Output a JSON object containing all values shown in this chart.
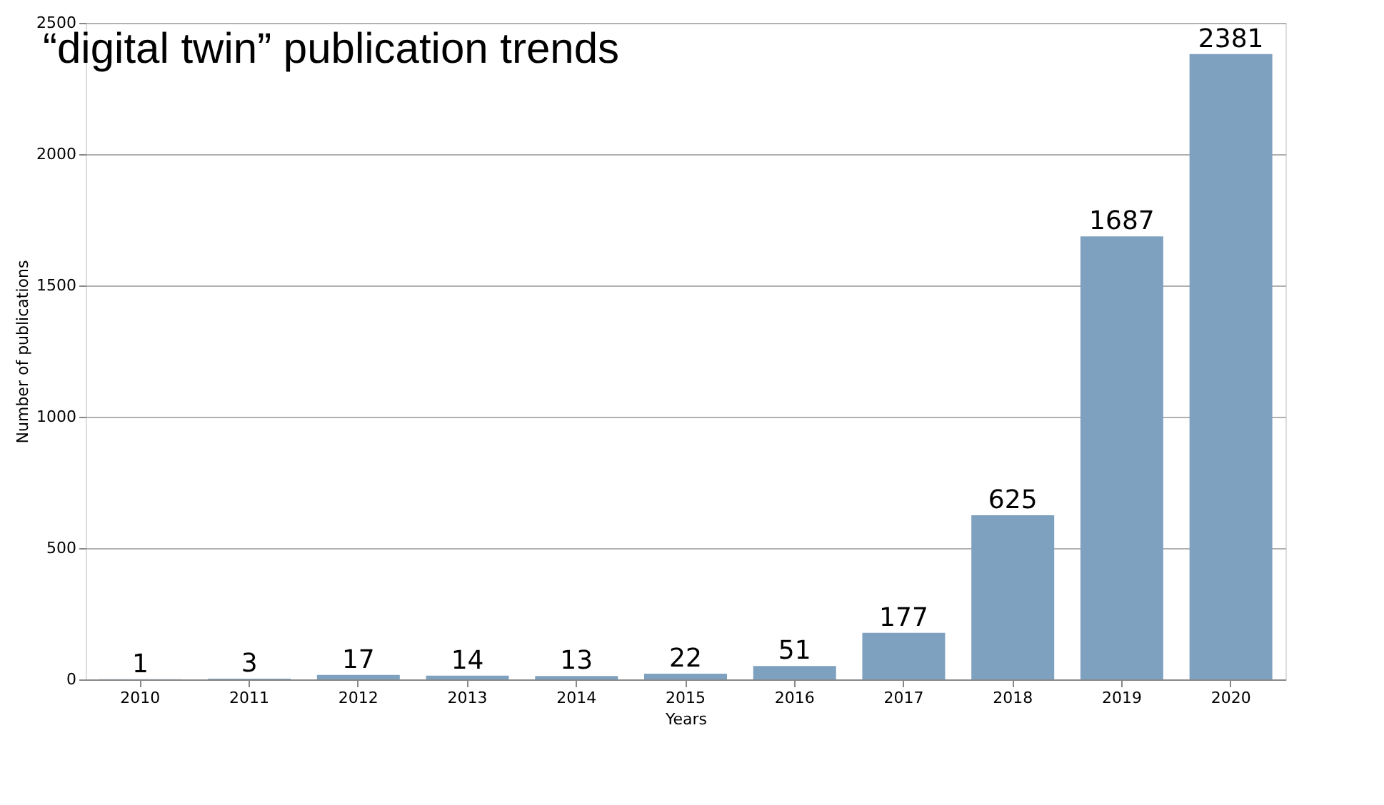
{
  "chart_data": {
    "type": "bar",
    "title": "“digital twin” publication trends",
    "xlabel": "Years",
    "ylabel": "Number of publications",
    "categories": [
      "2010",
      "2011",
      "2012",
      "2013",
      "2014",
      "2015",
      "2016",
      "2017",
      "2018",
      "2019",
      "2020"
    ],
    "values": [
      1,
      3,
      17,
      14,
      13,
      22,
      51,
      177,
      625,
      1687,
      2381
    ],
    "color": "#7fa1c0",
    "ylim": [
      0,
      2500
    ],
    "yticks": [
      0,
      500,
      1000,
      1500,
      2000,
      2500
    ],
    "grid": "y",
    "data_labels": true
  }
}
